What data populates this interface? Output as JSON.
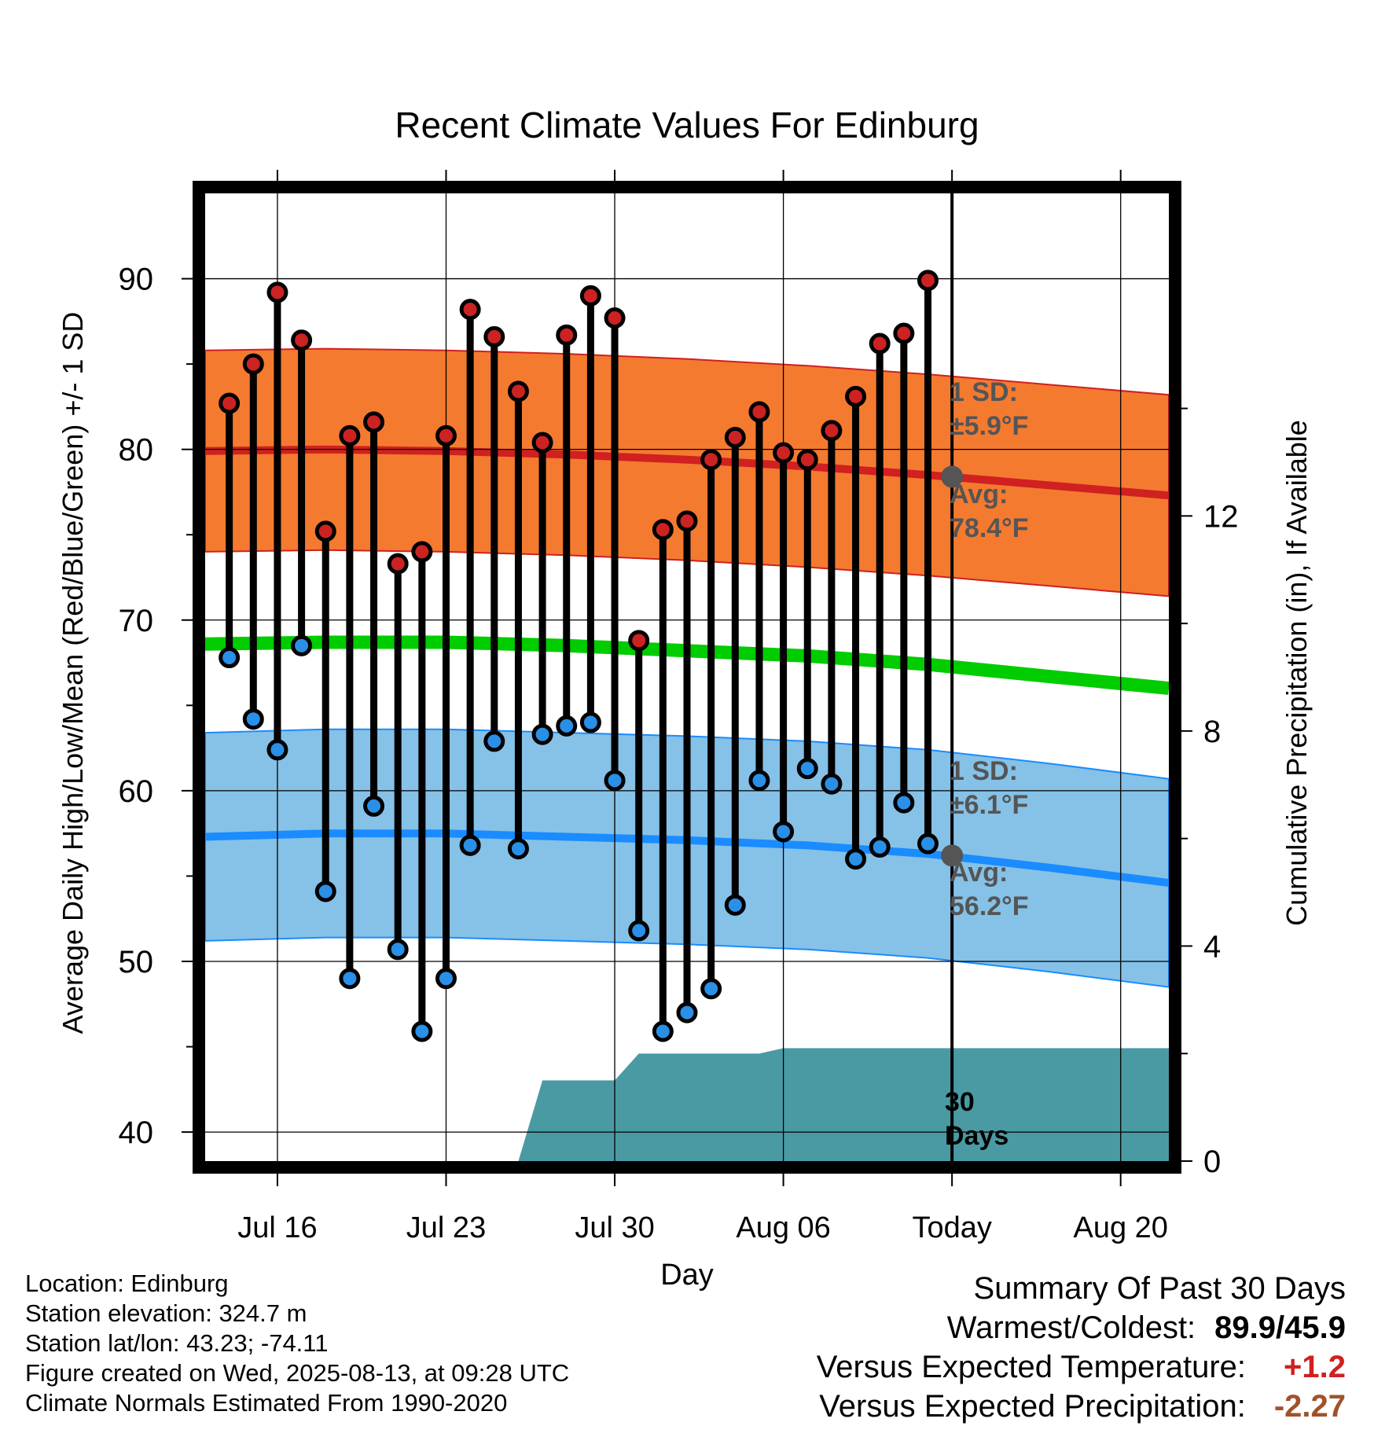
{
  "chart_data": {
    "type": "line",
    "title": "Recent Climate Values For Edinburg",
    "xlabel": "Day",
    "ylabel": "Average Daily High/Low/Mean (Red/Blue/Green) +/- 1 SD",
    "y2label": "Cumulative Precipitation (in), If Available",
    "ylim": [
      38.3,
      95
    ],
    "y2lim": [
      0,
      18
    ],
    "yticks": [
      40,
      50,
      60,
      70,
      80,
      90
    ],
    "y2ticks": [
      0,
      4,
      8,
      12
    ],
    "x_range_days": [
      "2025-07-13",
      "2025-08-22"
    ],
    "xticks": [
      {
        "date": "2025-07-16",
        "label": "Jul 16"
      },
      {
        "date": "2025-07-23",
        "label": "Jul 23"
      },
      {
        "date": "2025-07-30",
        "label": "Jul 30"
      },
      {
        "date": "2025-08-06",
        "label": "Aug 06"
      },
      {
        "date": "2025-08-13",
        "label": "Today"
      },
      {
        "date": "2025-08-20",
        "label": "Aug 20"
      }
    ],
    "today": "2025-08-13",
    "grid": true,
    "days": [
      "2025-07-14",
      "2025-07-15",
      "2025-07-16",
      "2025-07-17",
      "2025-07-18",
      "2025-07-19",
      "2025-07-20",
      "2025-07-21",
      "2025-07-22",
      "2025-07-23",
      "2025-07-24",
      "2025-07-25",
      "2025-07-26",
      "2025-07-27",
      "2025-07-28",
      "2025-07-29",
      "2025-07-30",
      "2025-07-31",
      "2025-08-01",
      "2025-08-02",
      "2025-08-03",
      "2025-08-04",
      "2025-08-05",
      "2025-08-06",
      "2025-08-07",
      "2025-08-08",
      "2025-08-09",
      "2025-08-10",
      "2025-08-11",
      "2025-08-12"
    ],
    "series": [
      {
        "name": "High",
        "color": "#cc2222",
        "values": [
          82.7,
          85.0,
          89.2,
          86.4,
          75.2,
          80.8,
          81.6,
          73.3,
          74.0,
          80.8,
          88.2,
          86.6,
          83.4,
          80.4,
          86.7,
          89.0,
          87.7,
          68.8,
          75.3,
          75.8,
          79.4,
          80.7,
          82.2,
          79.8,
          79.4,
          81.1,
          83.1,
          86.2,
          86.8,
          89.9
        ]
      },
      {
        "name": "Low",
        "color": "#2a8fe6",
        "values": [
          67.8,
          64.2,
          62.4,
          68.5,
          54.1,
          49.0,
          59.1,
          50.7,
          45.9,
          49.0,
          56.8,
          62.9,
          56.6,
          63.3,
          63.8,
          64.0,
          60.6,
          51.8,
          45.9,
          47.0,
          48.4,
          53.3,
          60.6,
          57.6,
          61.3,
          60.4,
          56.0,
          56.7,
          59.3,
          56.9
        ]
      }
    ],
    "normals": {
      "dates": [
        "2025-07-13",
        "2025-07-18",
        "2025-07-23",
        "2025-07-28",
        "2025-08-02",
        "2025-08-07",
        "2025-08-12",
        "2025-08-17",
        "2025-08-22"
      ],
      "high_avg": [
        79.9,
        80.0,
        79.9,
        79.7,
        79.4,
        79.0,
        78.5,
        77.9,
        77.3
      ],
      "low_avg": [
        57.3,
        57.5,
        57.5,
        57.3,
        57.1,
        56.8,
        56.3,
        55.5,
        54.6
      ],
      "mean_avg": [
        68.6,
        68.7,
        68.7,
        68.5,
        68.2,
        67.9,
        67.4,
        66.7,
        66.0
      ],
      "high_sd": 5.9,
      "low_sd": 6.1,
      "high_color": "#f47a30",
      "high_line_color": "#d02020",
      "low_color": "#86c1e7",
      "low_line_color": "#1a8cff",
      "mean_color": "#00cc00"
    },
    "precipitation": {
      "color": "#4a9aa4",
      "dates": [
        "2025-07-26",
        "2025-07-27",
        "2025-07-30",
        "2025-07-31",
        "2025-08-05",
        "2025-08-06",
        "2025-08-22"
      ],
      "values": [
        0,
        1.5,
        1.5,
        2.0,
        2.0,
        2.1,
        2.1
      ]
    },
    "annotations": {
      "high_sd_title": "1 SD:",
      "high_sd_value": "±5.9°F",
      "high_avg_title": "Avg:",
      "high_avg_value": "78.4°F",
      "low_sd_title": "1 SD:",
      "low_sd_value": "±6.1°F",
      "low_avg_title": "Avg:",
      "low_avg_value": "56.2°F",
      "days_count": "30",
      "days_label": "Days",
      "today_high": 78.4,
      "today_low": 56.2
    }
  },
  "footer": {
    "location": "Location: Edinburg",
    "elevation": "Station elevation: 324.7 m",
    "latlon": "Station lat/lon: 43.23; -74.11",
    "created": "Figure created on Wed, 2025-08-13, at 09:28 UTC",
    "normals": "Climate Normals Estimated From 1990-2020"
  },
  "summary": {
    "title": "Summary Of Past 30 Days",
    "warm_cold_label": "Warmest/Coldest:",
    "warm_cold_value": "89.9/45.9",
    "temp_label": "Versus Expected Temperature:",
    "temp_value": "+1.2",
    "precip_label": "Versus Expected Precipitation:",
    "precip_value": "-2.27"
  }
}
